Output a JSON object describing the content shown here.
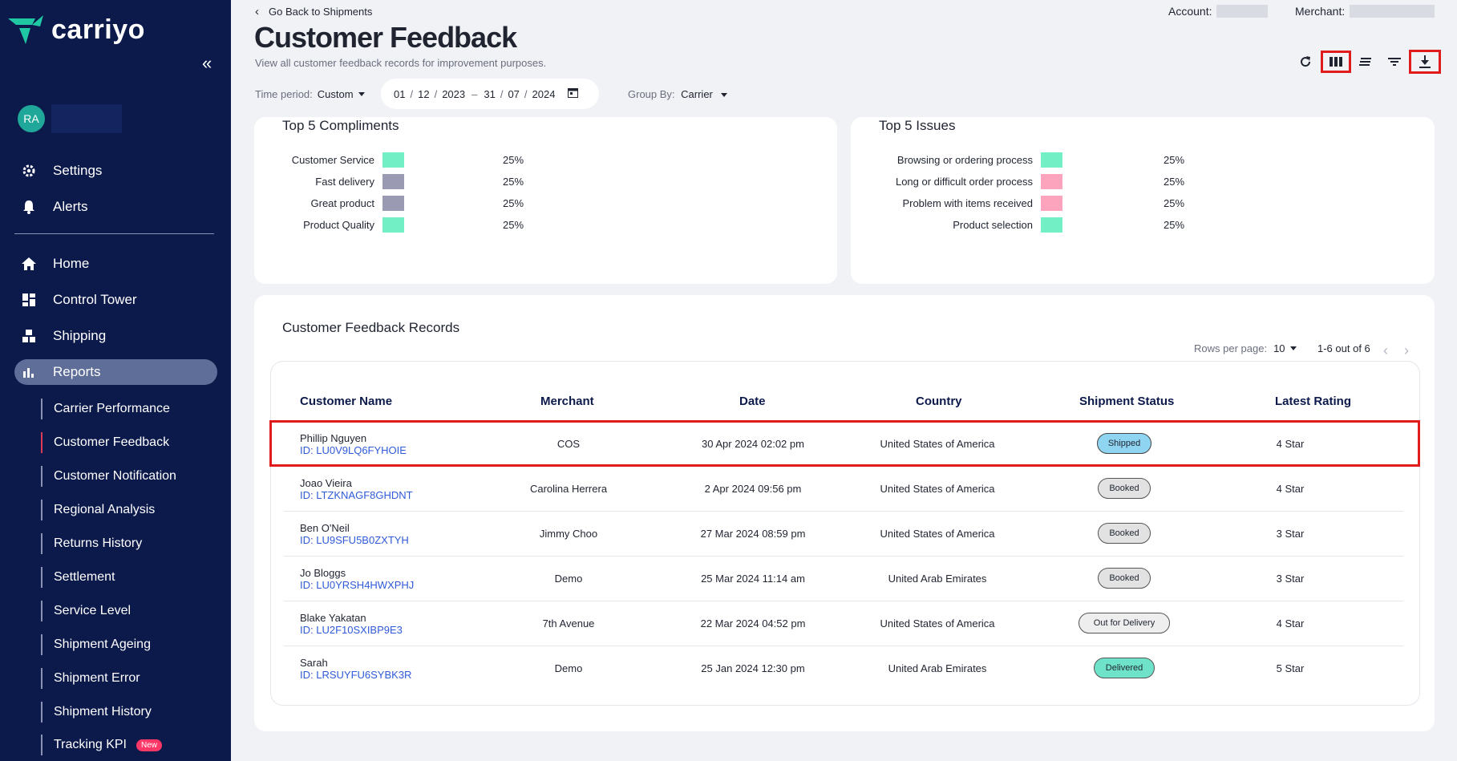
{
  "brand": {
    "name": "carriyo",
    "accent": "#1fc8a3"
  },
  "user": {
    "initials": "RA"
  },
  "sidebar": {
    "top_items": [
      {
        "label": "Settings",
        "icon": "gear-icon"
      },
      {
        "label": "Alerts",
        "icon": "bell-icon"
      }
    ],
    "main_items": [
      {
        "label": "Home",
        "icon": "home-icon"
      },
      {
        "label": "Control Tower",
        "icon": "dashboard-icon"
      },
      {
        "label": "Shipping",
        "icon": "shipping-icon"
      },
      {
        "label": "Reports",
        "icon": "bar-chart-icon"
      }
    ],
    "report_items": [
      {
        "label": "Carrier Performance"
      },
      {
        "label": "Customer Feedback"
      },
      {
        "label": "Customer Notification"
      },
      {
        "label": "Regional Analysis"
      },
      {
        "label": "Returns History"
      },
      {
        "label": "Settlement"
      },
      {
        "label": "Service Level"
      },
      {
        "label": "Shipment Ageing"
      },
      {
        "label": "Shipment Error"
      },
      {
        "label": "Shipment History"
      },
      {
        "label": "Tracking KPI",
        "badge": "New"
      }
    ]
  },
  "header": {
    "back_label": "Go Back to Shipments",
    "title": "Customer Feedback",
    "subtitle": "View all customer feedback records for improvement purposes.",
    "account_label": "Account:",
    "merchant_label": "Merchant:"
  },
  "filters": {
    "time_period_label": "Time period:",
    "time_period_value": "Custom",
    "date_from": {
      "d": "01",
      "m": "12",
      "y": "2023"
    },
    "date_to": {
      "d": "31",
      "m": "07",
      "y": "2024"
    },
    "group_by_label": "Group By:",
    "group_by_value": "Carrier"
  },
  "compliments": {
    "title": "Top 5 Compliments",
    "items": [
      {
        "label": "Customer Service",
        "pct": "25%",
        "color": "#72efc5"
      },
      {
        "label": "Fast delivery",
        "pct": "25%",
        "color": "#9a9bb3"
      },
      {
        "label": "Great product",
        "pct": "25%",
        "color": "#9a9bb3"
      },
      {
        "label": "Product Quality",
        "pct": "25%",
        "color": "#72efc5"
      }
    ]
  },
  "issues": {
    "title": "Top 5 Issues",
    "items": [
      {
        "label": "Browsing or ordering process",
        "pct": "25%",
        "color": "#72efc5"
      },
      {
        "label": "Long or difficult order process",
        "pct": "25%",
        "color": "#fca4be"
      },
      {
        "label": "Problem with items received",
        "pct": "25%",
        "color": "#fca4be"
      },
      {
        "label": "Product selection",
        "pct": "25%",
        "color": "#72efc5"
      }
    ]
  },
  "records": {
    "title": "Customer Feedback Records",
    "rows_per_page_label": "Rows per page:",
    "rows_per_page": "10",
    "range": "1-6 out of 6",
    "columns": [
      "Customer Name",
      "Merchant",
      "Date",
      "Country",
      "Shipment Status",
      "Latest Rating"
    ],
    "rows": [
      {
        "name": "Phillip Nguyen",
        "id": "ID: LU0V9LQ6FYHOIE",
        "merchant": "COS",
        "date": "30 Apr 2024 02:02 pm",
        "country": "United States of America",
        "status": "Shipped",
        "rating": "4 Star"
      },
      {
        "name": "Joao Vieira",
        "id": "ID: LTZKNAGF8GHDNT",
        "merchant": "Carolina Herrera",
        "date": "2 Apr 2024 09:56 pm",
        "country": "United States of America",
        "status": "Booked",
        "rating": "4 Star"
      },
      {
        "name": "Ben O'Neil",
        "id": "ID: LU9SFU5B0ZXTYH",
        "merchant": "Jimmy Choo",
        "date": "27 Mar 2024 08:59 pm",
        "country": "United States of America",
        "status": "Booked",
        "rating": "3 Star"
      },
      {
        "name": "Jo Bloggs",
        "id": "ID: LU0YRSH4HWXPHJ",
        "merchant": "Demo",
        "date": "25 Mar 2024 11:14 am",
        "country": "United Arab Emirates",
        "status": "Booked",
        "rating": "3 Star"
      },
      {
        "name": "Blake Yakatan",
        "id": "ID: LU2F10SXIBP9E3",
        "merchant": "7th Avenue",
        "date": "22 Mar 2024 04:52 pm",
        "country": "United States of America",
        "status": "Out for Delivery",
        "rating": "4 Star"
      },
      {
        "name": "Sarah",
        "id": "ID: LRSUYFU6SYBK3R",
        "merchant": "Demo",
        "date": "25 Jan 2024 12:30 pm",
        "country": "United Arab Emirates",
        "status": "Delivered",
        "rating": "5 Star"
      }
    ]
  }
}
